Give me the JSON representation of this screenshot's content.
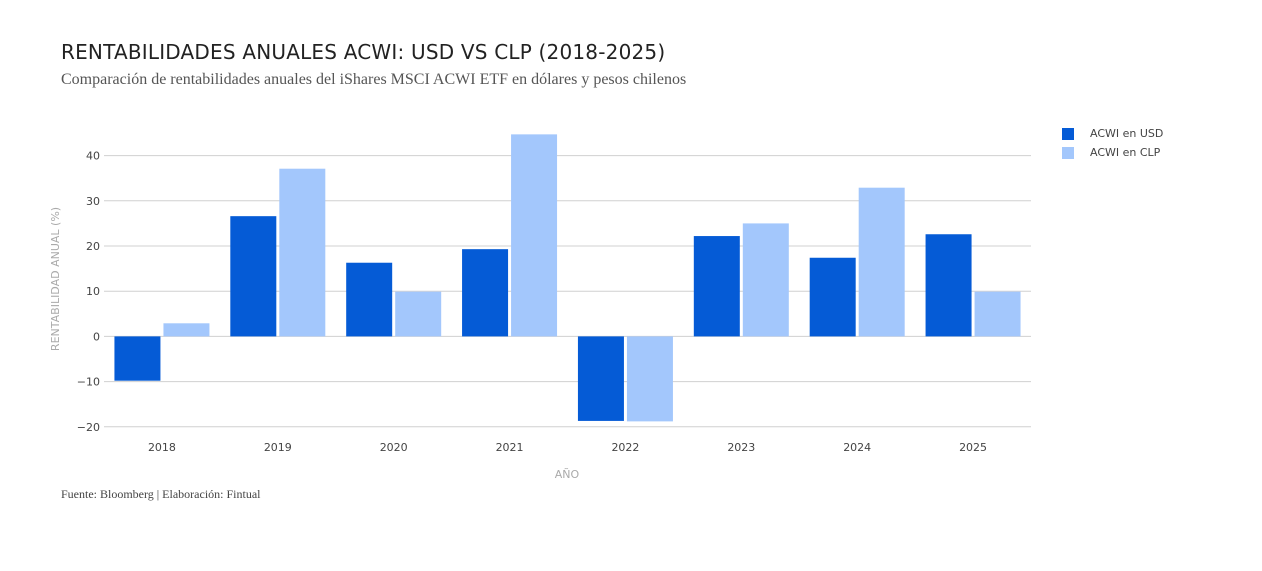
{
  "title": "RENTABILIDADES ANUALES ACWI: USD VS CLP (2018-2025)",
  "subtitle": "Comparación de rentabilidades anuales del iShares MSCI ACWI ETF en dólares y pesos chilenos",
  "source": "Fuente: Bloomberg | Elaboración: Fintual",
  "colors": {
    "usd": "#055bd6",
    "clp": "#a3c7fc",
    "grid": "#d0d0d0"
  },
  "chart_data": {
    "type": "bar",
    "categories": [
      "2018",
      "2019",
      "2020",
      "2021",
      "2022",
      "2023",
      "2024",
      "2025"
    ],
    "series": [
      {
        "name": "ACWI en USD",
        "values": [
          -9.8,
          26.6,
          16.3,
          19.3,
          -18.7,
          22.2,
          17.4,
          22.6
        ]
      },
      {
        "name": "ACWI en CLP",
        "values": [
          2.9,
          37.1,
          9.9,
          44.7,
          -18.8,
          25.0,
          32.9,
          9.9
        ]
      }
    ],
    "yticks": [
      40,
      30,
      20,
      10,
      0,
      -10,
      -20
    ],
    "ylim": [
      -20,
      45
    ],
    "xlabel": "AÑO",
    "ylabel": "RENTABILIDAD ANUAL (%)",
    "legend_position": "top-right"
  }
}
